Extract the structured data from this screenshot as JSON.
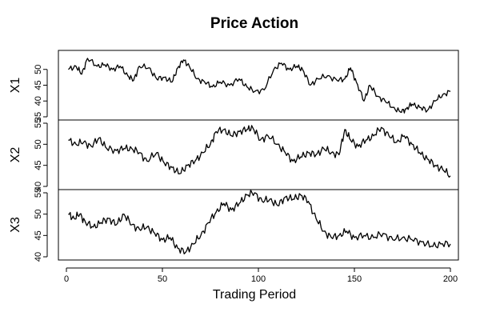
{
  "chart_data": {
    "type": "line",
    "title": "Price Action",
    "xlabel": "Trading Period",
    "xlim": [
      0,
      200
    ],
    "x_ticks": [
      "0",
      "50",
      "100",
      "150",
      "200"
    ],
    "grid": false,
    "legend": "none",
    "line_color": "#000000",
    "panels": [
      {
        "ylabel": "X1",
        "ylim": [
          35,
          55
        ],
        "y_ticks": [
          "35",
          "40",
          "45",
          "50"
        ],
        "series": [
          {
            "x": [
              1,
              5,
              8,
              11,
              16,
              20,
              24,
              28,
              32,
              35,
              38,
              43,
              47,
              51,
              55,
              58,
              61,
              64,
              68,
              72,
              76,
              80,
              85,
              90,
              94,
              98,
              103,
              108,
              112,
              116,
              120,
              123,
              127,
              131,
              136,
              141,
              145,
              148,
              151,
              155,
              158,
              162,
              166,
              170,
              174,
              177,
              180,
              184,
              188,
              192,
              196,
              200
            ],
            "y": [
              50,
              51,
              48.5,
              53.5,
              51,
              51.5,
              50,
              51,
              48,
              46.5,
              51,
              50.5,
              47,
              47.5,
              46,
              50.5,
              53,
              51,
              47,
              46,
              44.5,
              46,
              45,
              47,
              44.5,
              43,
              43.5,
              50,
              52,
              50,
              51,
              50,
              45,
              47,
              48,
              46.5,
              47,
              50.5,
              46,
              40,
              45,
              41.5,
              40,
              38,
              36.5,
              37.5,
              39,
              38,
              37,
              40,
              42,
              43
            ]
          }
        ]
      },
      {
        "ylabel": "X2",
        "ylim": [
          40,
          55
        ],
        "y_ticks": [
          "40",
          "45",
          "50",
          "55"
        ],
        "series": [
          {
            "x": [
              1,
              5,
              9,
              13,
              17,
              21,
              26,
              30,
              34,
              38,
              42,
              47,
              51,
              55,
              59,
              63,
              67,
              71,
              75,
              78,
              82,
              86,
              90,
              94,
              97,
              101,
              105,
              110,
              114,
              118,
              122,
              126,
              130,
              134,
              138,
              142,
              145,
              148,
              152,
              156,
              160,
              164,
              168,
              172,
              176,
              180,
              184,
              188,
              192,
              196,
              200
            ],
            "y": [
              51,
              50,
              50.5,
              49.5,
              51.5,
              49,
              48.5,
              49,
              49,
              48,
              46,
              48,
              45.5,
              44.5,
              43,
              45,
              46,
              48,
              50,
              53,
              53.5,
              52,
              53,
              53.5,
              54,
              51,
              52,
              50,
              48,
              46,
              47,
              48,
              47.5,
              49,
              48,
              47.5,
              53.5,
              51,
              49.5,
              51,
              52,
              54,
              52,
              50.5,
              52,
              50,
              48,
              46.5,
              45,
              44,
              42.5
            ]
          }
        ]
      },
      {
        "ylabel": "X3",
        "ylim": [
          40,
          55
        ],
        "y_ticks": [
          "40",
          "45",
          "50",
          "55"
        ],
        "series": [
          {
            "x": [
              1,
              4,
              7,
              10,
              14,
              18,
              22,
              26,
              30,
              34,
              38,
              42,
              46,
              50,
              54,
              58,
              62,
              66,
              70,
              74,
              78,
              82,
              86,
              90,
              94,
              98,
              102,
              106,
              110,
              114,
              118,
              122,
              126,
              130,
              134,
              138,
              142,
              146,
              150,
              155,
              160,
              165,
              170,
              175,
              180,
              185,
              190,
              195,
              200
            ],
            "y": [
              50,
              49,
              50,
              48,
              47,
              48,
              49,
              47.5,
              50,
              47.5,
              46.5,
              47,
              45.5,
              44,
              44.5,
              42,
              41,
              43,
              45,
              48,
              50.5,
              52.5,
              51,
              52.5,
              54.5,
              55,
              53,
              53.5,
              52,
              54,
              53.5,
              54.5,
              53,
              49,
              46,
              44.5,
              45,
              46,
              44.5,
              45,
              44.5,
              45.5,
              44,
              44.5,
              44,
              43.5,
              42.5,
              43,
              43
            ]
          }
        ]
      }
    ]
  }
}
